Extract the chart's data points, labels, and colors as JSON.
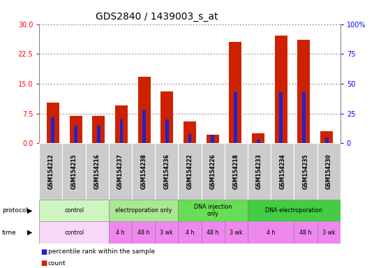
{
  "title": "GDS2840 / 1439003_s_at",
  "samples": [
    "GSM154212",
    "GSM154215",
    "GSM154216",
    "GSM154237",
    "GSM154238",
    "GSM154236",
    "GSM154222",
    "GSM154226",
    "GSM154218",
    "GSM154233",
    "GSM154234",
    "GSM154235",
    "GSM154230"
  ],
  "count_values": [
    10.2,
    7.0,
    7.0,
    9.5,
    16.8,
    13.0,
    5.5,
    2.2,
    25.5,
    2.5,
    27.2,
    26.0,
    3.0
  ],
  "percentile_values": [
    22,
    15,
    15,
    20,
    28,
    20,
    8,
    7,
    43,
    3,
    43,
    43,
    5
  ],
  "ylim_left": [
    0,
    30
  ],
  "ylim_right": [
    0,
    100
  ],
  "yticks_left": [
    0,
    7.5,
    15,
    22.5,
    30
  ],
  "yticks_right": [
    0,
    25,
    50,
    75,
    100
  ],
  "protocols": [
    {
      "label": "control",
      "start": 0,
      "end": 3,
      "color": "#d4f5c0"
    },
    {
      "label": "electroporation only",
      "start": 3,
      "end": 6,
      "color": "#a8e890"
    },
    {
      "label": "DNA injection\nonly",
      "start": 6,
      "end": 9,
      "color": "#66dd55"
    },
    {
      "label": "DNA electroporation",
      "start": 9,
      "end": 13,
      "color": "#44cc44"
    }
  ],
  "times": [
    {
      "label": "control",
      "start": 0,
      "end": 3
    },
    {
      "label": "4 h",
      "start": 3,
      "end": 4
    },
    {
      "label": "48 h",
      "start": 4,
      "end": 5
    },
    {
      "label": "3 wk",
      "start": 5,
      "end": 6
    },
    {
      "label": "4 h",
      "start": 6,
      "end": 7
    },
    {
      "label": "48 h",
      "start": 7,
      "end": 8
    },
    {
      "label": "3 wk",
      "start": 8,
      "end": 9
    },
    {
      "label": "4 h",
      "start": 9,
      "end": 11
    },
    {
      "label": "48 h",
      "start": 11,
      "end": 12
    },
    {
      "label": "3 wk",
      "start": 12,
      "end": 13
    }
  ],
  "bar_color_red": "#cc2200",
  "bar_color_blue": "#2222cc",
  "bar_width": 0.55,
  "blue_bar_width": 0.15,
  "grid_color": "#555555",
  "bg_color": "#ffffff",
  "sample_bg_color": "#cccccc",
  "protocol_time_border": "#888888",
  "time_color_control": "#f8d8f8",
  "time_color_other": "#ee88ee",
  "title_fontsize": 10,
  "tick_fontsize": 7,
  "label_fontsize": 7
}
